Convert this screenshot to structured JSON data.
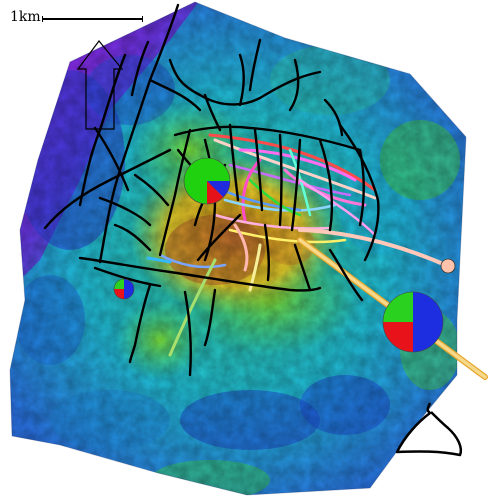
{
  "scale": {
    "label": "1km"
  },
  "colors": {
    "ridge_low": "#1e3fd6",
    "ridge_mid": "#1bb8e6",
    "ridge_green": "#48d650",
    "ridge_yellow": "#f0d420",
    "ridge_high": "#c9782b",
    "corner_purple": "#a61aef",
    "fault": "#000000",
    "well_trajectory_main": "#f2cd7a",
    "well_trajectory_pink": "#ffc0b0"
  },
  "icons": [
    "north-arrow-icon",
    "platform-outline-icon"
  ],
  "pie_markers": [
    {
      "name": "large-pie",
      "slices": [
        {
          "color": "#1c2ee0",
          "fraction": 0.5
        },
        {
          "color": "#e8121b",
          "fraction": 0.25
        },
        {
          "color": "#2ad11e",
          "fraction": 0.25
        }
      ]
    },
    {
      "name": "green-pie",
      "slices": [
        {
          "color": "#20d10f",
          "fraction": 0.75
        },
        {
          "color": "#1f2bdc",
          "fraction": 0.125
        },
        {
          "color": "#e5121a",
          "fraction": 0.125
        }
      ]
    },
    {
      "name": "small-pie",
      "slices": [
        {
          "color": "#1c2ee0",
          "fraction": 0.5
        },
        {
          "color": "#e8121b",
          "fraction": 0.25
        },
        {
          "color": "#2ad11e",
          "fraction": 0.25
        }
      ]
    }
  ]
}
